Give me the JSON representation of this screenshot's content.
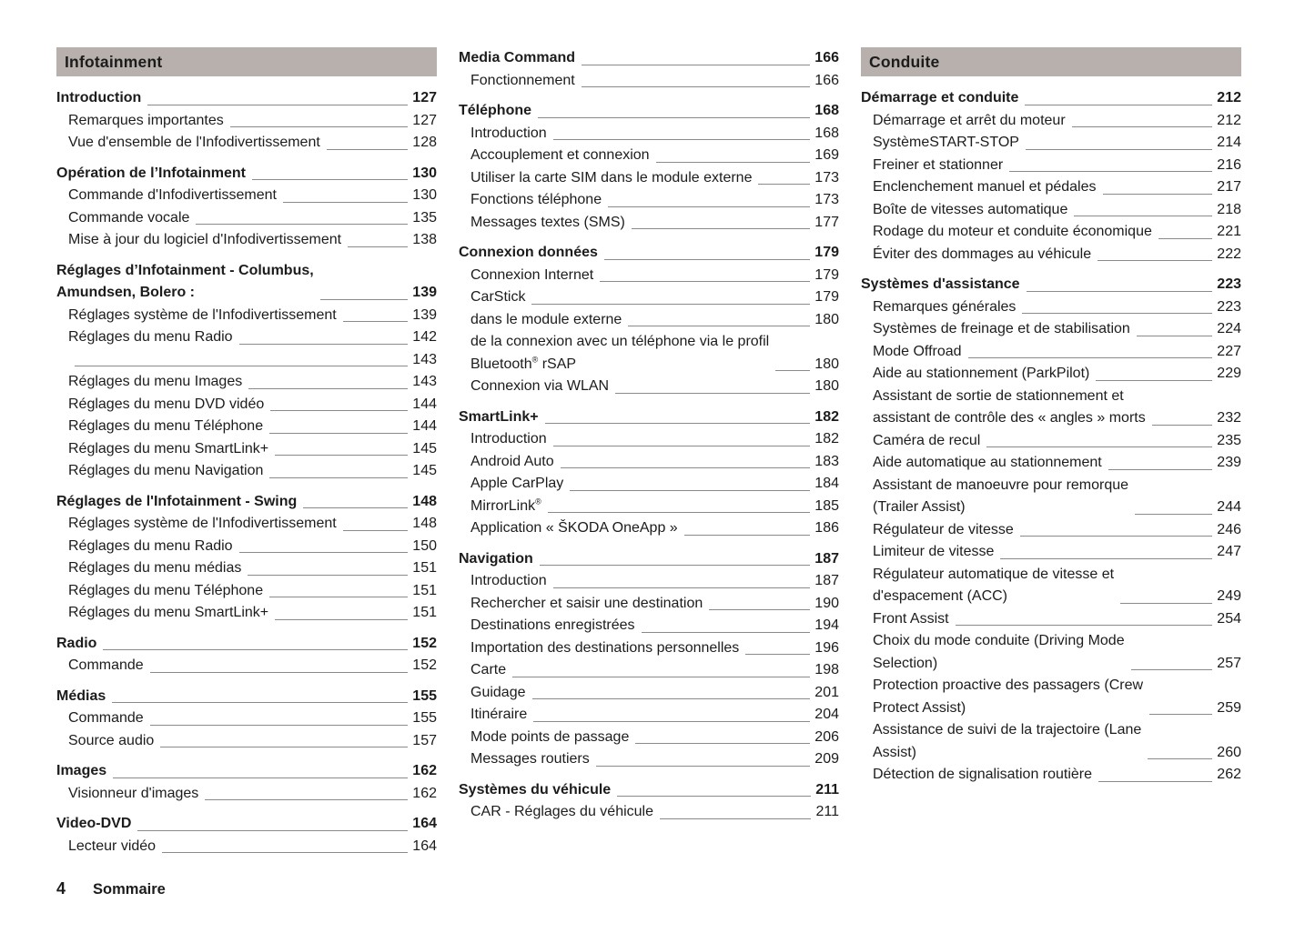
{
  "page": {
    "footer": {
      "page_number": "4",
      "label": "Sommaire"
    },
    "colors": {
      "header_bar": "#b7b0ad",
      "text": "#1c1c1c",
      "leader_line": "#8c8a88"
    }
  },
  "columns": [
    {
      "header": "Infotainment",
      "rows": [
        {
          "label": "Introduction",
          "page": "127",
          "style": "head"
        },
        {
          "label": "Remarques importantes",
          "page": "127",
          "style": "sub"
        },
        {
          "label": "Vue d'ensemble de l'Infodivertissement",
          "page": "128",
          "style": "sub"
        },
        {
          "label": "Opération de l’Infotainment",
          "page": "130",
          "style": "head"
        },
        {
          "label": "Commande d'Infodivertissement",
          "page": "130",
          "style": "sub"
        },
        {
          "label": "Commande vocale",
          "page": "135",
          "style": "sub"
        },
        {
          "label": "Mise à jour du logiciel d'Infodivertissement",
          "page": "138",
          "style": "sub"
        },
        {
          "label": "Réglages d’Infotainment - Columbus,\nAmundsen, Bolero :",
          "page": "139",
          "style": "head"
        },
        {
          "label": "Réglages système de l'Infodivertissement",
          "page": "139",
          "style": "sub"
        },
        {
          "label": "Réglages du menu Radio",
          "page": "142",
          "style": "sub"
        },
        {
          "label": "",
          "page": "143",
          "style": "sub"
        },
        {
          "label": "Réglages du menu Images",
          "page": "143",
          "style": "sub"
        },
        {
          "label": "Réglages du menu DVD vidéo",
          "page": "144",
          "style": "sub"
        },
        {
          "label": "Réglages du menu Téléphone",
          "page": "144",
          "style": "sub"
        },
        {
          "label": "Réglages du menu SmartLink+",
          "page": "145",
          "style": "sub"
        },
        {
          "label": "Réglages du menu Navigation",
          "page": "145",
          "style": "sub"
        },
        {
          "label": "Réglages de l'Infotainment - Swing",
          "page": "148",
          "style": "head"
        },
        {
          "label": "Réglages système de l'Infodivertissement",
          "page": "148",
          "style": "sub"
        },
        {
          "label": "Réglages du menu Radio",
          "page": "150",
          "style": "sub"
        },
        {
          "label": "Réglages du menu médias",
          "page": "151",
          "style": "sub"
        },
        {
          "label": "Réglages du menu Téléphone",
          "page": "151",
          "style": "sub"
        },
        {
          "label": "Réglages du menu SmartLink+",
          "page": "151",
          "style": "sub"
        },
        {
          "label": "Radio",
          "page": "152",
          "style": "head"
        },
        {
          "label": "Commande",
          "page": "152",
          "style": "sub"
        },
        {
          "label": "Médias",
          "page": "155",
          "style": "head"
        },
        {
          "label": "Commande",
          "page": "155",
          "style": "sub"
        },
        {
          "label": "Source audio",
          "page": "157",
          "style": "sub"
        },
        {
          "label": "Images",
          "page": "162",
          "style": "head"
        },
        {
          "label": "Visionneur d'images",
          "page": "162",
          "style": "sub"
        },
        {
          "label": "Video-DVD",
          "page": "164",
          "style": "head"
        },
        {
          "label": "Lecteur vidéo",
          "page": "164",
          "style": "sub"
        }
      ]
    },
    {
      "header": null,
      "rows": [
        {
          "label": "Media Command",
          "page": "166",
          "style": "head"
        },
        {
          "label": "Fonctionnement",
          "page": "166",
          "style": "sub"
        },
        {
          "label": "Téléphone",
          "page": "168",
          "style": "head"
        },
        {
          "label": "Introduction",
          "page": "168",
          "style": "sub"
        },
        {
          "label": "Accouplement et connexion",
          "page": "169",
          "style": "sub"
        },
        {
          "label": "Utiliser la carte SIM dans le module externe",
          "page": "173",
          "style": "sub"
        },
        {
          "label": "Fonctions téléphone",
          "page": "173",
          "style": "sub"
        },
        {
          "label": "Messages textes (SMS)",
          "page": "177",
          "style": "sub"
        },
        {
          "label": "Connexion données",
          "page": "179",
          "style": "head"
        },
        {
          "label": "Connexion Internet",
          "page": "179",
          "style": "sub"
        },
        {
          "label": "CarStick",
          "page": "179",
          "style": "sub"
        },
        {
          "label": "dans le module externe",
          "page": "180",
          "style": "sub"
        },
        {
          "label": "de la connexion avec un téléphone via le profil\nBluetooth® rSAP",
          "page": "180",
          "style": "sub"
        },
        {
          "label": "Connexion via WLAN",
          "page": "180",
          "style": "sub"
        },
        {
          "label": "SmartLink+",
          "page": "182",
          "style": "head"
        },
        {
          "label": "Introduction",
          "page": "182",
          "style": "sub"
        },
        {
          "label": "Android Auto",
          "page": "183",
          "style": "sub"
        },
        {
          "label": "Apple CarPlay",
          "page": "184",
          "style": "sub"
        },
        {
          "label": "MirrorLink®",
          "page": "185",
          "style": "sub"
        },
        {
          "label": "Application « ŠKODA OneApp »",
          "page": "186",
          "style": "sub"
        },
        {
          "label": "Navigation",
          "page": "187",
          "style": "head"
        },
        {
          "label": "Introduction",
          "page": "187",
          "style": "sub"
        },
        {
          "label": "Rechercher et saisir une destination",
          "page": "190",
          "style": "sub"
        },
        {
          "label": "Destinations enregistrées",
          "page": "194",
          "style": "sub"
        },
        {
          "label": "Importation des destinations personnelles",
          "page": "196",
          "style": "sub"
        },
        {
          "label": "Carte",
          "page": "198",
          "style": "sub"
        },
        {
          "label": "Guidage",
          "page": "201",
          "style": "sub"
        },
        {
          "label": "Itinéraire",
          "page": "204",
          "style": "sub"
        },
        {
          "label": "Mode points de passage",
          "page": "206",
          "style": "sub"
        },
        {
          "label": "Messages routiers",
          "page": "209",
          "style": "sub"
        },
        {
          "label": "Systèmes du véhicule",
          "page": "211",
          "style": "head"
        },
        {
          "label": "CAR - Réglages du véhicule",
          "page": "211",
          "style": "sub"
        }
      ]
    },
    {
      "header": "Conduite",
      "rows": [
        {
          "label": "Démarrage et conduite",
          "page": "212",
          "style": "head"
        },
        {
          "label": "Démarrage et arrêt du moteur",
          "page": "212",
          "style": "sub"
        },
        {
          "label": "SystèmeSTART-STOP",
          "page": "214",
          "style": "sub"
        },
        {
          "label": "Freiner et stationner",
          "page": "216",
          "style": "sub"
        },
        {
          "label": "Enclenchement manuel et pédales",
          "page": "217",
          "style": "sub"
        },
        {
          "label": "Boîte de vitesses automatique",
          "page": "218",
          "style": "sub"
        },
        {
          "label": "Rodage du moteur et conduite économique",
          "page": "221",
          "style": "sub"
        },
        {
          "label": "Éviter des dommages au véhicule",
          "page": "222",
          "style": "sub"
        },
        {
          "label": "Systèmes d'assistance",
          "page": "223",
          "style": "head"
        },
        {
          "label": "Remarques générales",
          "page": "223",
          "style": "sub"
        },
        {
          "label": "Systèmes de freinage et de stabilisation",
          "page": "224",
          "style": "sub"
        },
        {
          "label": "Mode Offroad",
          "page": "227",
          "style": "sub"
        },
        {
          "label": "Aide au stationnement (ParkPilot)",
          "page": "229",
          "style": "sub"
        },
        {
          "label": "Assistant de sortie de stationnement et\nassistant de contrôle des « angles » morts",
          "page": "232",
          "style": "sub"
        },
        {
          "label": "Caméra de recul",
          "page": "235",
          "style": "sub"
        },
        {
          "label": "Aide automatique au stationnement",
          "page": "239",
          "style": "sub"
        },
        {
          "label": "Assistant de manoeuvre pour remorque\n(Trailer Assist)",
          "page": "244",
          "style": "sub"
        },
        {
          "label": "Régulateur de vitesse",
          "page": "246",
          "style": "sub"
        },
        {
          "label": "Limiteur de vitesse",
          "page": "247",
          "style": "sub"
        },
        {
          "label": "Régulateur automatique de vitesse et\nd'espacement (ACC)",
          "page": "249",
          "style": "sub"
        },
        {
          "label": "Front Assist",
          "page": "254",
          "style": "sub"
        },
        {
          "label": "Choix du mode conduite (Driving Mode\nSelection)",
          "page": "257",
          "style": "sub"
        },
        {
          "label": "Protection proactive des passagers (Crew\nProtect Assist)",
          "page": "259",
          "style": "sub"
        },
        {
          "label": "Assistance de suivi de la trajectoire (Lane\nAssist)",
          "page": "260",
          "style": "sub"
        },
        {
          "label": "Détection de signalisation routière",
          "page": "262",
          "style": "sub"
        }
      ]
    }
  ]
}
